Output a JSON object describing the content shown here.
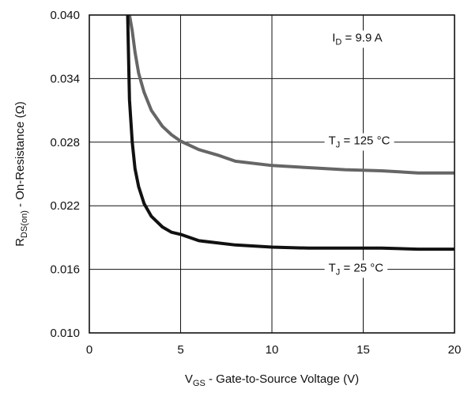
{
  "chart_data": {
    "type": "line",
    "title": "",
    "xlabel": {
      "main": "V",
      "sub": "GS",
      "rest": " - Gate-to-Source Voltage (V)"
    },
    "ylabel": {
      "main": "R",
      "sub": "DS(on)",
      "rest": " - On-Resistance (Ω)"
    },
    "xlim": [
      0,
      20
    ],
    "ylim": [
      0.01,
      0.04
    ],
    "xticks": [
      0,
      5,
      10,
      15,
      20
    ],
    "xtick_labels": [
      "0",
      "5",
      "10",
      "15",
      "20"
    ],
    "yticks": [
      0.01,
      0.016,
      0.022,
      0.028,
      0.034,
      0.04
    ],
    "ytick_labels": [
      "0.010",
      "0.016",
      "0.022",
      "0.028",
      "0.034",
      "0.040"
    ],
    "grid": true,
    "annotations": [
      {
        "id": "id",
        "main": "I",
        "sub": "D",
        "rest": " = 9.9 A",
        "x": 13.3,
        "y": 0.0375
      },
      {
        "id": "tj125",
        "main": "T",
        "sub": "J",
        "rest": " = 125 °C",
        "x": 13.1,
        "y": 0.0278
      },
      {
        "id": "tj25",
        "main": "T",
        "sub": "J",
        "rest": " = 25 °C",
        "x": 13.1,
        "y": 0.0158
      }
    ],
    "series": [
      {
        "id": "tj125",
        "color": "#666666",
        "x": [
          2.2,
          2.35,
          2.5,
          2.7,
          3.0,
          3.4,
          4.0,
          4.5,
          5.0,
          6.0,
          7.0,
          8.0,
          10.0,
          12.0,
          14.0,
          16.0,
          18.0,
          20.0
        ],
        "y": [
          0.04,
          0.0385,
          0.0365,
          0.0345,
          0.0327,
          0.031,
          0.0295,
          0.0287,
          0.0281,
          0.0273,
          0.0268,
          0.0262,
          0.0258,
          0.0256,
          0.0254,
          0.0253,
          0.0251,
          0.0251
        ]
      },
      {
        "id": "tj25",
        "color": "#111111",
        "x": [
          2.1,
          2.2,
          2.35,
          2.5,
          2.7,
          3.0,
          3.4,
          4.0,
          4.5,
          5.0,
          6.0,
          7.0,
          8.0,
          10.0,
          12.0,
          14.0,
          16.0,
          18.0,
          20.0
        ],
        "y": [
          0.04,
          0.032,
          0.028,
          0.0255,
          0.0238,
          0.0222,
          0.021,
          0.02,
          0.0195,
          0.0193,
          0.0187,
          0.0185,
          0.0183,
          0.0181,
          0.018,
          0.018,
          0.018,
          0.0179,
          0.0179
        ]
      }
    ]
  }
}
